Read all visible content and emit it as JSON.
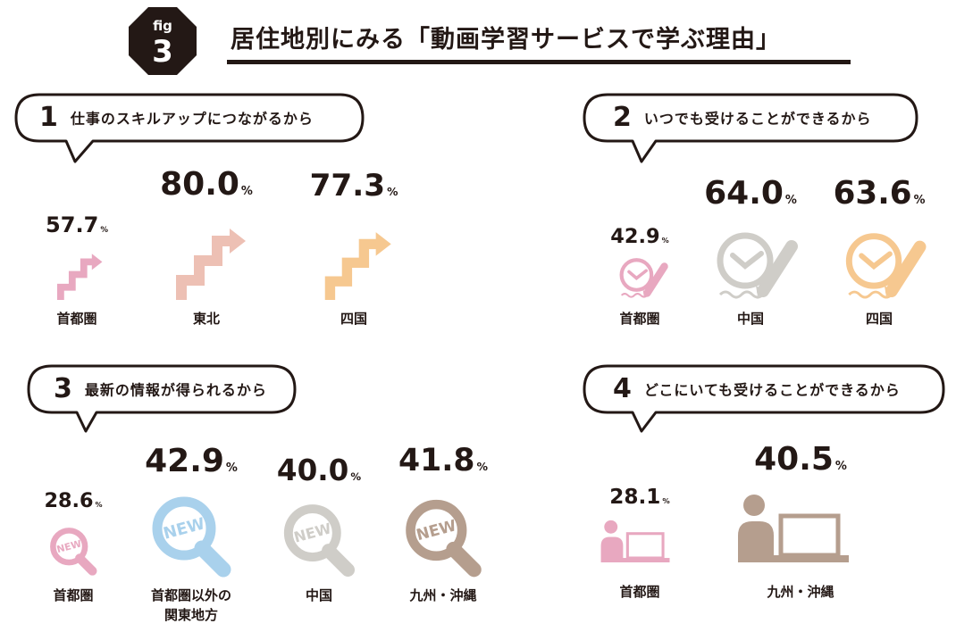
{
  "figure": {
    "badge_small": "fig",
    "badge_num": "3",
    "title": "居住地別にみる「動画学習サービスで学ぶ理由」"
  },
  "colors": {
    "ink": "#231815",
    "pink": "#e8a8c0",
    "salmon": "#edc0b4",
    "orange": "#f6c890",
    "gray": "#cfcdc8",
    "blue": "#a9d1ec",
    "brown": "#b59e8e"
  },
  "chart_data": [
    {
      "type": "bar",
      "number": "1",
      "title": "仕事のスキルアップにつながるから",
      "categories": [
        "首都圏",
        "東北",
        "四国"
      ],
      "values": [
        57.7,
        80.0,
        77.3
      ],
      "value_labels": [
        "57.7",
        "80.0",
        "77.3"
      ],
      "unit": "%",
      "icon": "stairs-arrow-icon",
      "colors": [
        "#e8a8c0",
        "#edc0b4",
        "#f6c890"
      ]
    },
    {
      "type": "bar",
      "number": "2",
      "title": "いつでも受けることができるから",
      "categories": [
        "首都圏",
        "中国",
        "四国"
      ],
      "values": [
        42.9,
        64.0,
        63.6
      ],
      "value_labels": [
        "42.9",
        "64.0",
        "63.6"
      ],
      "unit": "%",
      "icon": "clock-pencil-icon",
      "colors": [
        "#e8a8c0",
        "#cfcdc8",
        "#f6c890"
      ]
    },
    {
      "type": "bar",
      "number": "3",
      "title": "最新の情報が得られるから",
      "categories": [
        "首都圏",
        "首都圏以外の\n関東地方",
        "中国",
        "九州・沖縄"
      ],
      "values": [
        28.6,
        42.9,
        40.0,
        41.8
      ],
      "value_labels": [
        "28.6",
        "42.9",
        "40.0",
        "41.8"
      ],
      "unit": "%",
      "icon": "magnifier-new-icon",
      "icon_text": "NEW",
      "colors": [
        "#e8a8c0",
        "#a9d1ec",
        "#cfcdc8",
        "#b59e8e"
      ]
    },
    {
      "type": "bar",
      "number": "4",
      "title": "どこにいても受けることができるから",
      "categories": [
        "首都圏",
        "九州・沖縄"
      ],
      "values": [
        28.1,
        40.5
      ],
      "value_labels": [
        "28.1",
        "40.5"
      ],
      "unit": "%",
      "icon": "person-laptop-icon",
      "colors": [
        "#e8a8c0",
        "#b59e8e"
      ]
    }
  ]
}
